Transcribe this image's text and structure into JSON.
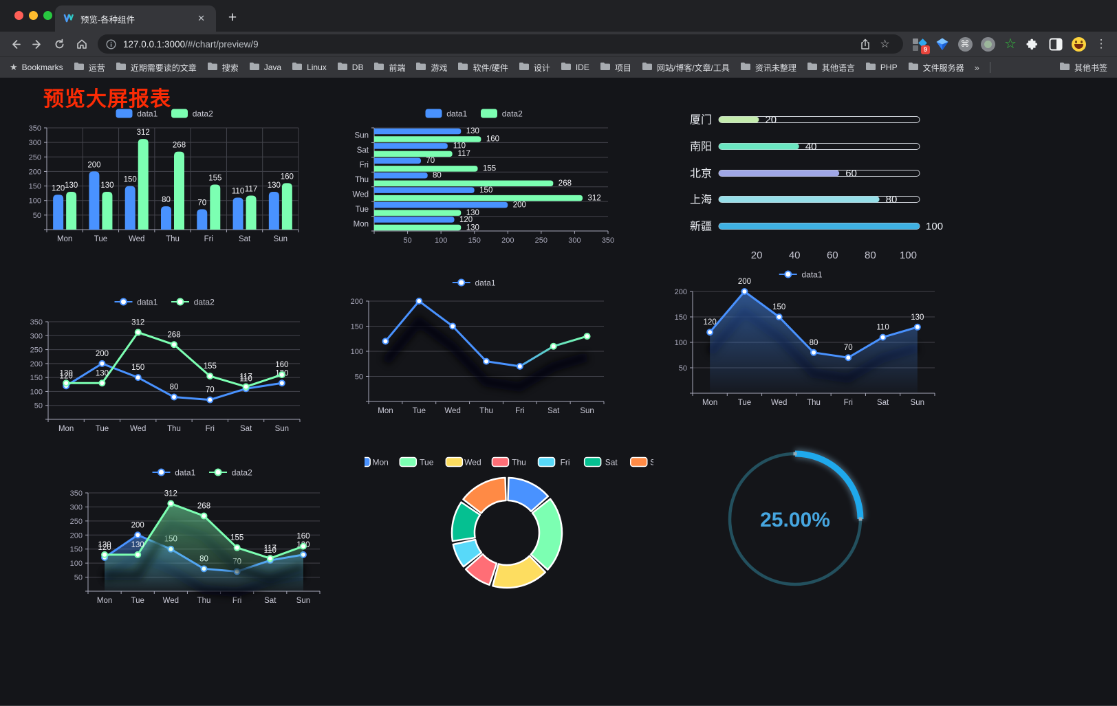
{
  "browser": {
    "window_controls": [
      "close",
      "minimize",
      "zoom"
    ],
    "tab": {
      "title": "预览-各种组件",
      "close_glyph": "✕",
      "new_tab_glyph": "+"
    },
    "url": {
      "host": "127.0.0.1:3000",
      "path": "/#/chart/preview/9"
    },
    "extensions_badge": "9",
    "menu_glyph": "⋮",
    "bookmarks_bar": {
      "label": "Bookmarks",
      "folders": [
        "运营",
        "近期需要读的文章",
        "搜索",
        "Java",
        "Linux",
        "DB",
        "前端",
        "游戏",
        "软件/硬件",
        "设计",
        "IDE",
        "项目",
        "网站/博客/文章/工具",
        "资讯未整理",
        "其他语言",
        "PHP",
        "文件服务器"
      ],
      "overflow_glyph": "»",
      "other_label": "其他书签"
    }
  },
  "page": {
    "title": "预览大屏报表",
    "title_color": "#fb2b05",
    "bg": "#141519"
  },
  "chart_data": [
    {
      "id": "bar-grouped",
      "type": "bar",
      "categories": [
        "Mon",
        "Tue",
        "Wed",
        "Thu",
        "Fri",
        "Sat",
        "Sun"
      ],
      "series": [
        {
          "name": "data1",
          "color": "#4992ff",
          "values": [
            120,
            200,
            150,
            80,
            70,
            110,
            130
          ]
        },
        {
          "name": "data2",
          "color": "#7cffb2",
          "values": [
            130,
            130,
            312,
            268,
            155,
            117,
            160
          ]
        }
      ],
      "ylim": [
        0,
        350
      ],
      "ystep": 50,
      "grid": true,
      "legend_position": "top"
    },
    {
      "id": "bar-horizontal",
      "type": "bar",
      "orientation": "horizontal",
      "categories_top_to_bottom": [
        "Sun",
        "Sat",
        "Fri",
        "Thu",
        "Wed",
        "Tue",
        "Mon"
      ],
      "series": [
        {
          "name": "data1",
          "color": "#4992ff",
          "values_top_to_bottom": [
            130,
            110,
            70,
            80,
            150,
            200,
            120
          ]
        },
        {
          "name": "data2",
          "color": "#7cffb2",
          "values_top_to_bottom": [
            160,
            117,
            155,
            268,
            312,
            130,
            130
          ]
        }
      ],
      "xlim": [
        0,
        350
      ],
      "xstep": 50,
      "legend_position": "top"
    },
    {
      "id": "city-progress",
      "type": "bar",
      "style": "progress",
      "items": [
        {
          "label": "厦门",
          "value": 20,
          "color": "#c4ebad"
        },
        {
          "label": "南阳",
          "value": 40,
          "color": "#6be6c1"
        },
        {
          "label": "北京",
          "value": 60,
          "color": "#a0a7e6"
        },
        {
          "label": "上海",
          "value": 80,
          "color": "#96dee8"
        },
        {
          "label": "新疆",
          "value": 100,
          "color": "#3fb1e3"
        }
      ],
      "xticks": [
        0,
        20,
        40,
        60,
        80,
        100
      ],
      "xlim": [
        0,
        100
      ]
    },
    {
      "id": "line-two-series",
      "type": "line",
      "categories": [
        "Mon",
        "Tue",
        "Wed",
        "Thu",
        "Fri",
        "Sat",
        "Sun"
      ],
      "series": [
        {
          "name": "data1",
          "color": "#4992ff",
          "values": [
            120,
            200,
            150,
            80,
            70,
            110,
            130
          ]
        },
        {
          "name": "data2",
          "color": "#7cffb2",
          "values": [
            130,
            130,
            312,
            268,
            155,
            117,
            160
          ]
        }
      ],
      "ylim": [
        0,
        350
      ],
      "ystep": 50,
      "labels": true,
      "legend_position": "top"
    },
    {
      "id": "line-gradient",
      "type": "line",
      "categories": [
        "Mon",
        "Tue",
        "Wed",
        "Thu",
        "Fri",
        "Sat",
        "Sun"
      ],
      "series": [
        {
          "name": "data1",
          "values": [
            120,
            200,
            150,
            80,
            70,
            110,
            130
          ],
          "gradient": [
            "#4992ff",
            "#7cffb2"
          ]
        }
      ],
      "ylim": [
        0,
        200
      ],
      "ystep": 50,
      "labels": false,
      "legend_position": "top"
    },
    {
      "id": "line-area",
      "type": "area",
      "categories": [
        "Mon",
        "Tue",
        "Wed",
        "Thu",
        "Fri",
        "Sat",
        "Sun"
      ],
      "series": [
        {
          "name": "data1",
          "color": "#4992ff",
          "values": [
            120,
            200,
            150,
            80,
            70,
            110,
            130
          ],
          "area": true
        }
      ],
      "ylim": [
        0,
        200
      ],
      "ystep": 50,
      "labels": true,
      "legend_position": "top"
    },
    {
      "id": "area-two-series",
      "type": "area",
      "categories": [
        "Mon",
        "Tue",
        "Wed",
        "Thu",
        "Fri",
        "Sat",
        "Sun"
      ],
      "series": [
        {
          "name": "data1",
          "color": "#4992ff",
          "values": [
            120,
            200,
            150,
            80,
            70,
            110,
            130
          ],
          "area": true
        },
        {
          "name": "data2",
          "color": "#7cffb2",
          "values": [
            130,
            130,
            312,
            268,
            155,
            117,
            160
          ],
          "area": true
        }
      ],
      "ylim": [
        0,
        350
      ],
      "ystep": 50,
      "labels": true,
      "legend_position": "top"
    },
    {
      "id": "week-donut",
      "type": "pie",
      "items": [
        {
          "name": "Mon",
          "value": 120,
          "color": "#4992ff"
        },
        {
          "name": "Tue",
          "value": 200,
          "color": "#7cffb2"
        },
        {
          "name": "Wed",
          "value": 150,
          "color": "#fddd60"
        },
        {
          "name": "Thu",
          "value": 80,
          "color": "#ff6e76"
        },
        {
          "name": "Fri",
          "value": 70,
          "color": "#58d9f9"
        },
        {
          "name": "Sat",
          "value": 110,
          "color": "#05c091"
        },
        {
          "name": "Sun",
          "value": 130,
          "color": "#ff8a45"
        }
      ],
      "donut": true,
      "legend_position": "top"
    },
    {
      "id": "gauge",
      "type": "gauge",
      "value": 25,
      "display": "25.00%",
      "arc_color": "#1fa9ec",
      "track_color": "#23505e",
      "text_color": "#46a6e0"
    }
  ]
}
